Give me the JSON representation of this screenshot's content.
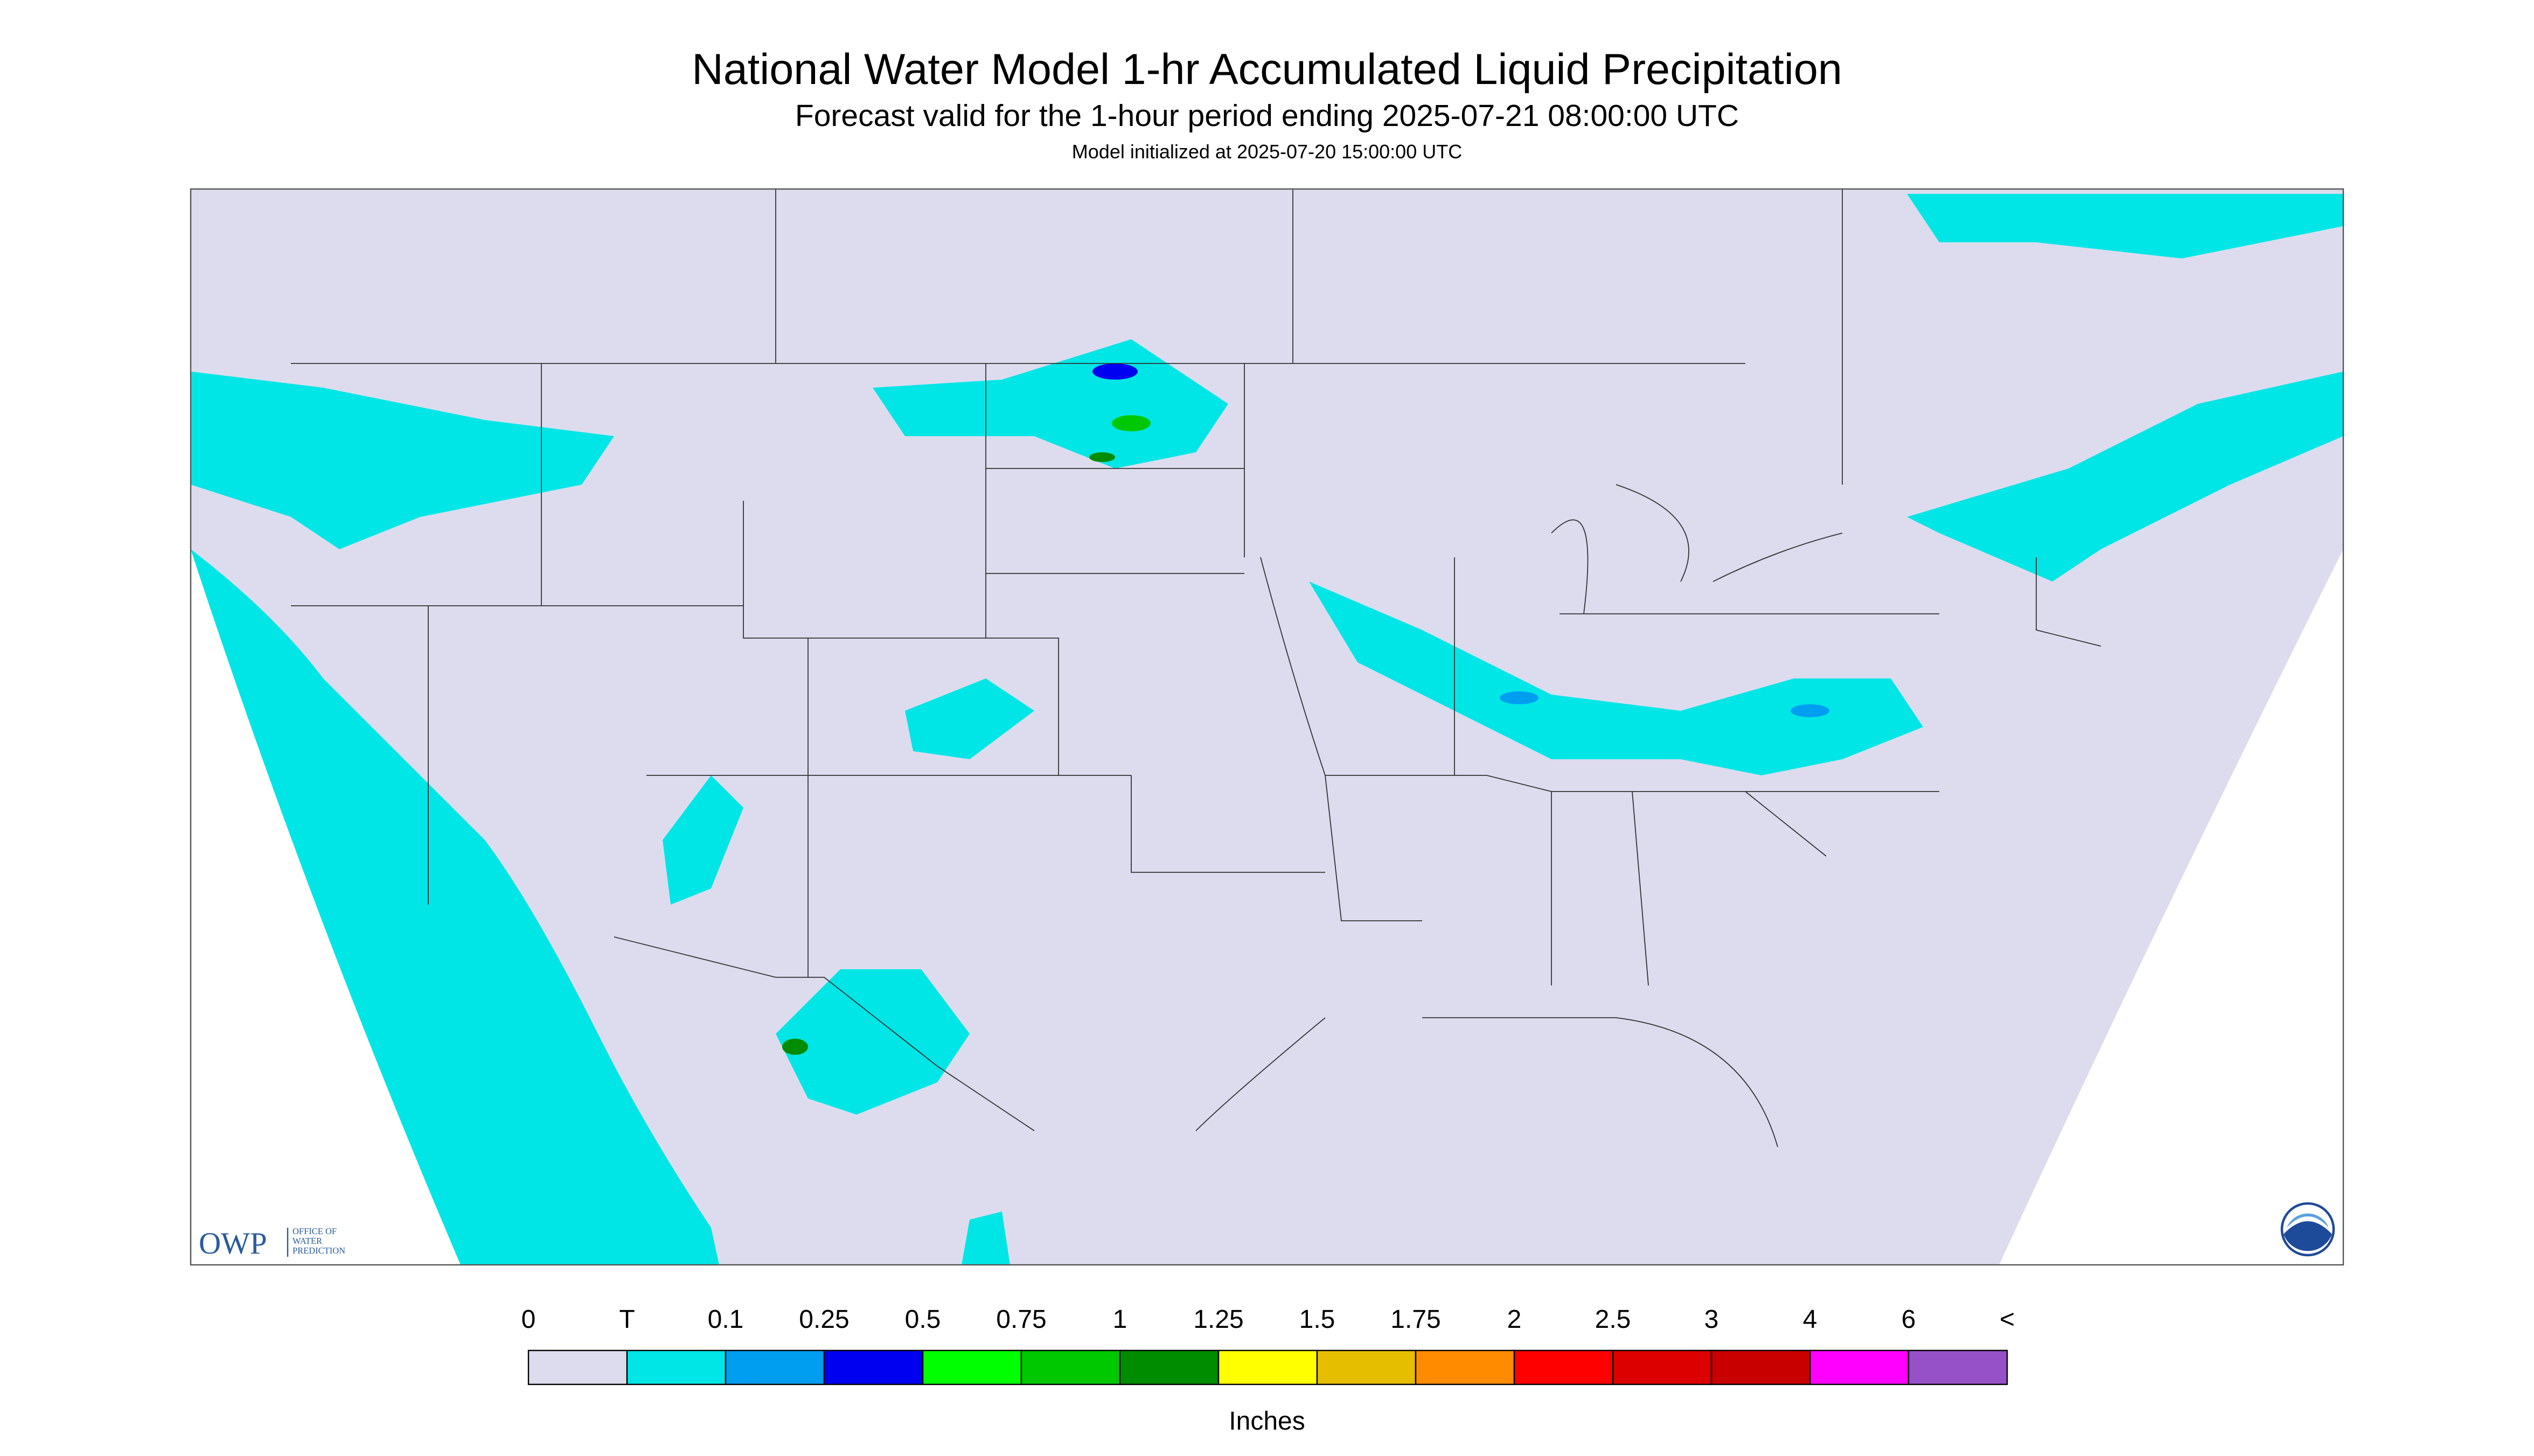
{
  "header": {
    "title": "National Water Model 1-hr Accumulated Liquid Precipitation",
    "subtitle": "Forecast valid for the 1-hour period ending 2025-07-21 08:00:00 UTC",
    "init": "Model initialized at 2025-07-20 15:00:00 UTC"
  },
  "logo": {
    "abbr": "OWP",
    "lines": [
      "OFFICE OF",
      "WATER",
      "PREDICTION"
    ]
  },
  "legend": {
    "labels": [
      "0",
      "T",
      "0.1",
      "0.25",
      "0.5",
      "0.75",
      "1",
      "1.25",
      "1.5",
      "1.75",
      "2",
      "2.5",
      "3",
      "4",
      "6",
      "<"
    ],
    "colors": [
      "#dcdcee",
      "#00e6e6",
      "#009ef0",
      "#0000f0",
      "#00ff00",
      "#00c800",
      "#008c00",
      "#ffff00",
      "#e6be00",
      "#ff8c00",
      "#ff0000",
      "#dc0000",
      "#c80000",
      "#ff00ff",
      "#9650c8"
    ],
    "units": "Inches"
  }
}
